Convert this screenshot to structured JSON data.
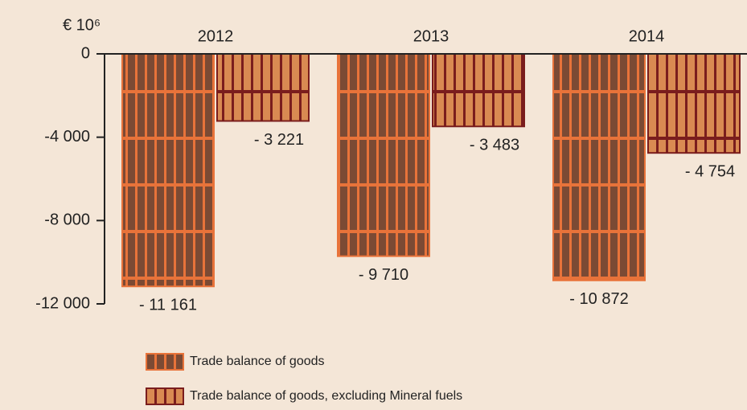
{
  "chart_data": {
    "type": "bar",
    "y_label": "€ 10⁶",
    "categories": [
      "2012",
      "2013",
      "2014"
    ],
    "series": [
      {
        "name": "Trade balance of goods",
        "color": "#7b4a34",
        "stroke": "#e8733a",
        "values": [
          -11161,
          -9710,
          -10872
        ],
        "value_labels": [
          "- 11 161",
          "- 9 710",
          "- 10 872"
        ]
      },
      {
        "name": "Trade balance of goods, excluding Mineral fuels",
        "color": "#d98a52",
        "stroke": "#7a1d1d",
        "values": [
          -3221,
          -3483,
          -4754
        ],
        "value_labels": [
          "- 3 221",
          "- 3 483",
          "- 4 754"
        ]
      }
    ],
    "ylim": [
      -12000,
      0
    ],
    "yticks": [
      {
        "value": -12000,
        "label": "-12 000"
      },
      {
        "value": -8000,
        "label": "-8 000"
      },
      {
        "value": -4000,
        "label": "-4 000"
      },
      0
    ]
  }
}
